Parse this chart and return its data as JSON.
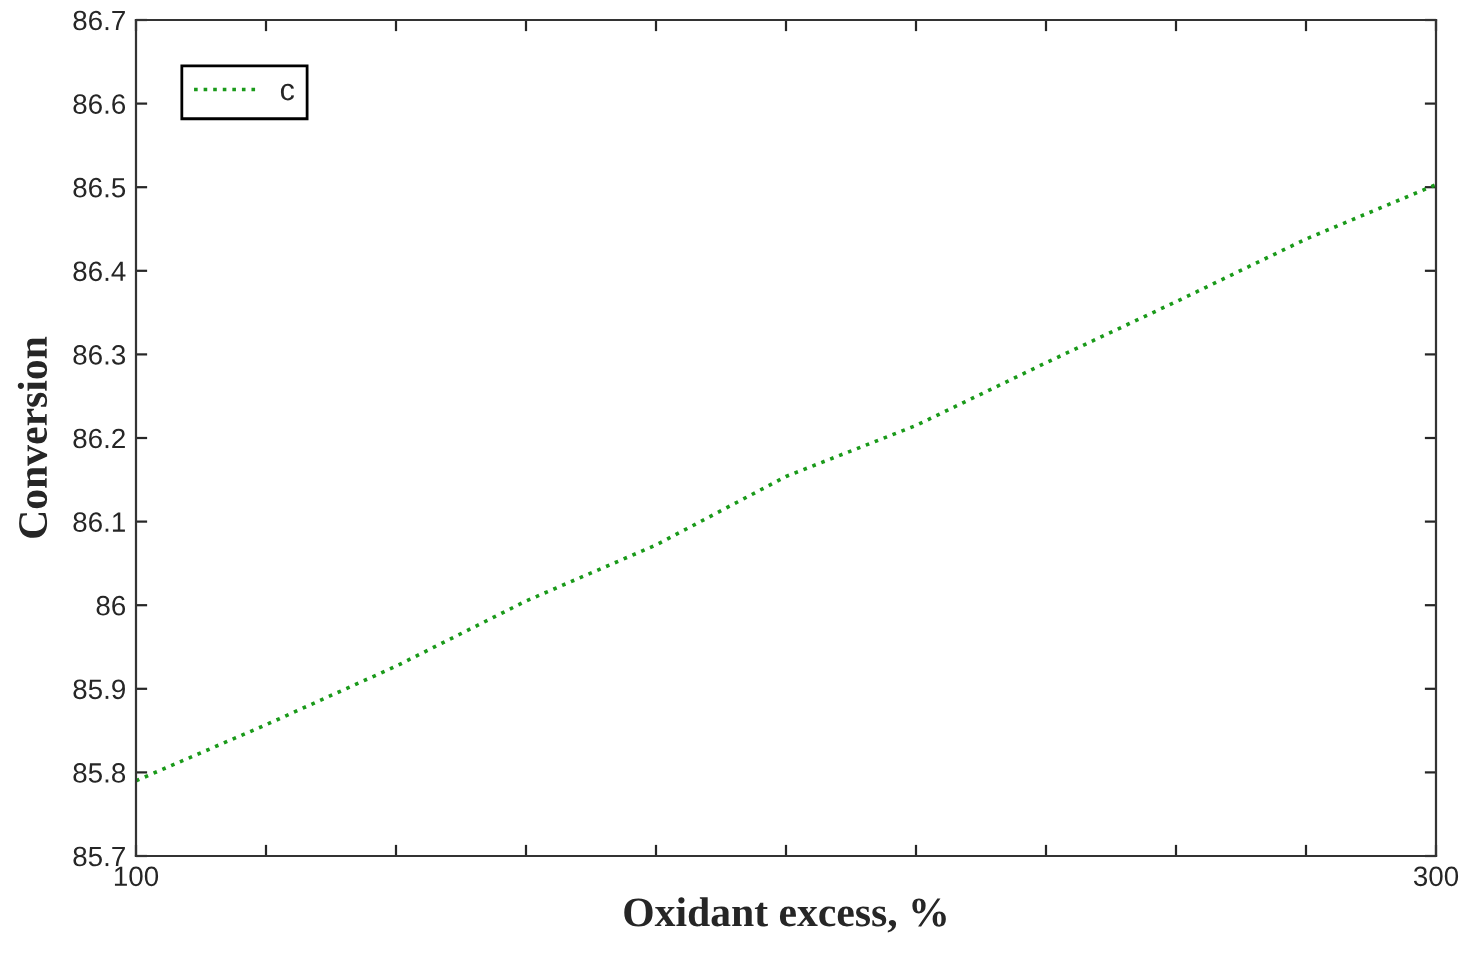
{
  "chart_data": {
    "type": "line",
    "xlabel": "Oxidant excess, %",
    "ylabel": "Conversion",
    "x": [
      100,
      120,
      140,
      160,
      180,
      200,
      220,
      240,
      260,
      280,
      300
    ],
    "series": [
      {
        "name": "c",
        "color": "#1a9a1a",
        "values": [
          85.79,
          85.857,
          85.927,
          86.005,
          86.072,
          86.154,
          86.215,
          86.29,
          86.363,
          86.438,
          86.503
        ]
      }
    ],
    "xlim": [
      100,
      300
    ],
    "xticks": [
      100,
      {
        "value": 120,
        "label": null
      },
      {
        "value": 140,
        "label": null
      },
      {
        "value": 160,
        "label": null
      },
      {
        "value": 180,
        "label": null
      },
      {
        "value": 200,
        "label": null
      },
      {
        "value": 220,
        "label": null
      },
      {
        "value": 240,
        "label": null
      },
      {
        "value": 260,
        "label": null
      },
      {
        "value": 280,
        "label": null
      },
      300
    ],
    "ylim": [
      85.7,
      86.7
    ],
    "yticks": [
      85.7,
      85.8,
      85.9,
      86,
      86.1,
      86.2,
      86.3,
      86.4,
      86.5,
      86.6,
      86.7
    ],
    "legend": "top left",
    "marker": "none",
    "line_style": "dotted",
    "grid": false
  }
}
